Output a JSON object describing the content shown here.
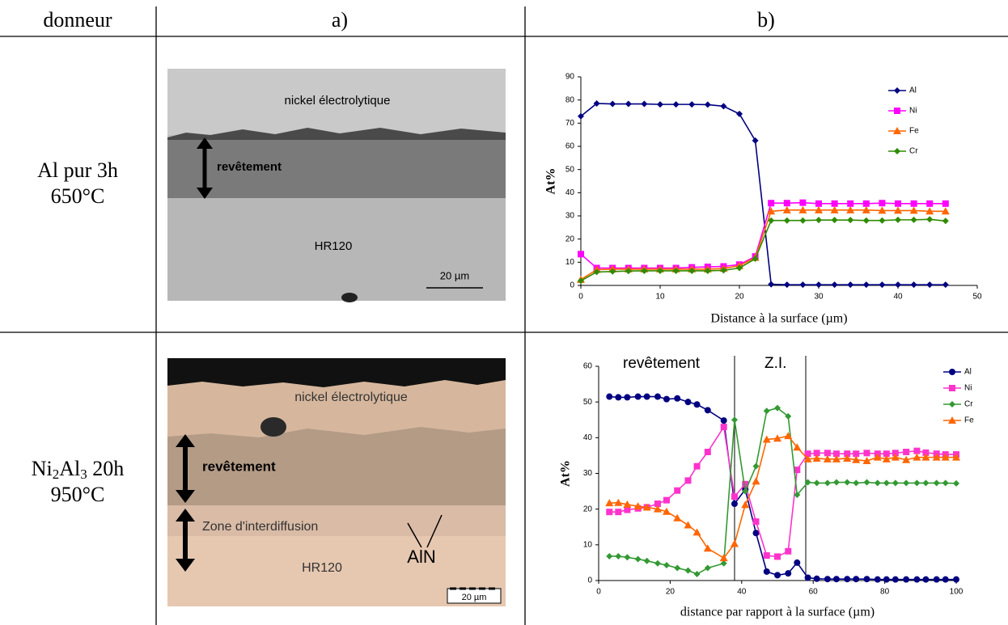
{
  "table": {
    "header": [
      "donneur",
      "a)",
      "b)"
    ],
    "rows": [
      {
        "donor": [
          "Al pur 3h",
          "650°C"
        ],
        "image_labels": [
          "nickel électrolytique",
          "revêtement",
          "HR120",
          "20 µm"
        ]
      },
      {
        "donor": [
          [
            "Ni",
            "2",
            "Al",
            "3",
            " 20h"
          ],
          "950°C"
        ],
        "image_labels": [
          "nickel électrolytique",
          "revêtement",
          "Zone d'interdiffusion",
          "HR120",
          "AlN",
          "20 µm"
        ]
      }
    ]
  },
  "chart_data": [
    {
      "type": "line",
      "ylabel": "At%",
      "xlabel": "Distance à la surface (µm)",
      "xlim": [
        0,
        50
      ],
      "xticks": [
        0,
        10,
        20,
        30,
        40,
        50
      ],
      "ylim": [
        0,
        90
      ],
      "yticks": [
        0,
        10,
        20,
        30,
        40,
        50,
        60,
        70,
        80,
        90
      ],
      "x": [
        0,
        2,
        4,
        6,
        8,
        10,
        12,
        14,
        16,
        18,
        20,
        22,
        24,
        26,
        28,
        30,
        32,
        34,
        36,
        38,
        40,
        42,
        44,
        46
      ],
      "series": [
        {
          "name": "Al",
          "color": "#000080",
          "marker": "diamond",
          "values": [
            73,
            78.5,
            78.3,
            78.3,
            78.3,
            78.1,
            78.1,
            78.1,
            78,
            77.3,
            74,
            62.5,
            0.5,
            0.3,
            0.3,
            0.3,
            0.3,
            0.3,
            0.3,
            0.3,
            0.3,
            0.3,
            0.3,
            0.3
          ]
        },
        {
          "name": "Ni",
          "color": "#ff00ff",
          "marker": "square",
          "values": [
            13.5,
            7.5,
            7.5,
            7.5,
            7.5,
            7.5,
            7.5,
            7.8,
            8,
            8.2,
            9,
            12.5,
            35.5,
            35.5,
            35.7,
            35.3,
            35.3,
            35.3,
            35.3,
            35.5,
            35.3,
            35.3,
            35.3,
            35.3
          ]
        },
        {
          "name": "Fe",
          "color": "#ff6600",
          "marker": "triangle",
          "values": [
            2.5,
            6.8,
            7,
            7,
            7,
            7,
            7,
            7,
            7,
            7.3,
            8.5,
            12,
            32,
            32.5,
            32.5,
            32.5,
            32.5,
            32.5,
            32.5,
            32.3,
            32.3,
            32.3,
            32,
            32
          ]
        },
        {
          "name": "Cr",
          "color": "#2e8b00",
          "marker": "diamond",
          "values": [
            2,
            5.8,
            6,
            6.2,
            6.3,
            6.3,
            6.3,
            6.3,
            6.3,
            6.5,
            7.5,
            11.5,
            28,
            28,
            28,
            28.2,
            28.2,
            28.2,
            28,
            28,
            28.3,
            28.3,
            28.5,
            27.8
          ]
        }
      ]
    },
    {
      "type": "line",
      "ylabel": "At%",
      "xlabel": "distance par rapport à la surface (µm)",
      "annotations": [
        "revêtement",
        "Z.I."
      ],
      "xlim": [
        0,
        100
      ],
      "xticks": [
        0,
        20,
        40,
        60,
        80,
        100
      ],
      "ylim": [
        0,
        60
      ],
      "yticks": [
        0,
        10,
        20,
        30,
        40,
        50,
        60
      ],
      "x": [
        3,
        5.5,
        8,
        11,
        13.5,
        16.5,
        19,
        22,
        25,
        27.5,
        30.5,
        35,
        38,
        41,
        44,
        47,
        50,
        53,
        55.5,
        58.5,
        61,
        64,
        66.5,
        69.5,
        72,
        75,
        78,
        80.5,
        83,
        86,
        89,
        91.5,
        94.5,
        97,
        100
      ],
      "series": [
        {
          "name": "Al",
          "color": "#000080",
          "marker": "circle",
          "values": [
            51.5,
            51.3,
            51.3,
            51.5,
            51.5,
            51.5,
            50.8,
            51,
            50,
            49.3,
            47.7,
            44.8,
            21.5,
            25.5,
            13.3,
            2.5,
            1.5,
            2,
            5,
            0.8,
            0.5,
            0.4,
            0.4,
            0.4,
            0.4,
            0.4,
            0.3,
            0.3,
            0.3,
            0.3,
            0.3,
            0.3,
            0.3,
            0.3,
            0.3
          ]
        },
        {
          "name": "Ni",
          "color": "#ff33cc",
          "marker": "square",
          "values": [
            19.2,
            19.2,
            19.8,
            20.2,
            20.5,
            21.5,
            22.5,
            25.2,
            28,
            32,
            36,
            43,
            23.5,
            27,
            16.5,
            7,
            6.7,
            8.2,
            31,
            35.5,
            35.7,
            35.7,
            35.5,
            35.5,
            35.5,
            35.7,
            35.5,
            35.5,
            35.7,
            36,
            36.3,
            35.8,
            35.5,
            35.3,
            35.3
          ]
        },
        {
          "name": "Cr",
          "color": "#339933",
          "marker": "diamond",
          "values": [
            6.8,
            6.8,
            6.5,
            6,
            5.5,
            4.8,
            4.3,
            3.5,
            2.8,
            1.8,
            3.5,
            4.8,
            45,
            25,
            32,
            47.5,
            48.3,
            46,
            24,
            27.5,
            27.3,
            27.3,
            27.5,
            27.5,
            27.3,
            27.5,
            27.3,
            27.3,
            27.3,
            27.3,
            27.3,
            27.3,
            27.3,
            27.3,
            27.2
          ]
        },
        {
          "name": "Fe",
          "color": "#ff6600",
          "marker": "triangle",
          "values": [
            21.7,
            21.8,
            21.3,
            20.8,
            20.5,
            20,
            19.3,
            17.5,
            15.5,
            13.5,
            9,
            6.3,
            10.3,
            21.2,
            27.8,
            39.5,
            39.8,
            40.5,
            37.3,
            34,
            34.2,
            34,
            34,
            34.2,
            33.8,
            33.5,
            34.5,
            34,
            34.5,
            33.8,
            34.5,
            34.5,
            34.5,
            34.5,
            34.5
          ]
        }
      ]
    }
  ]
}
